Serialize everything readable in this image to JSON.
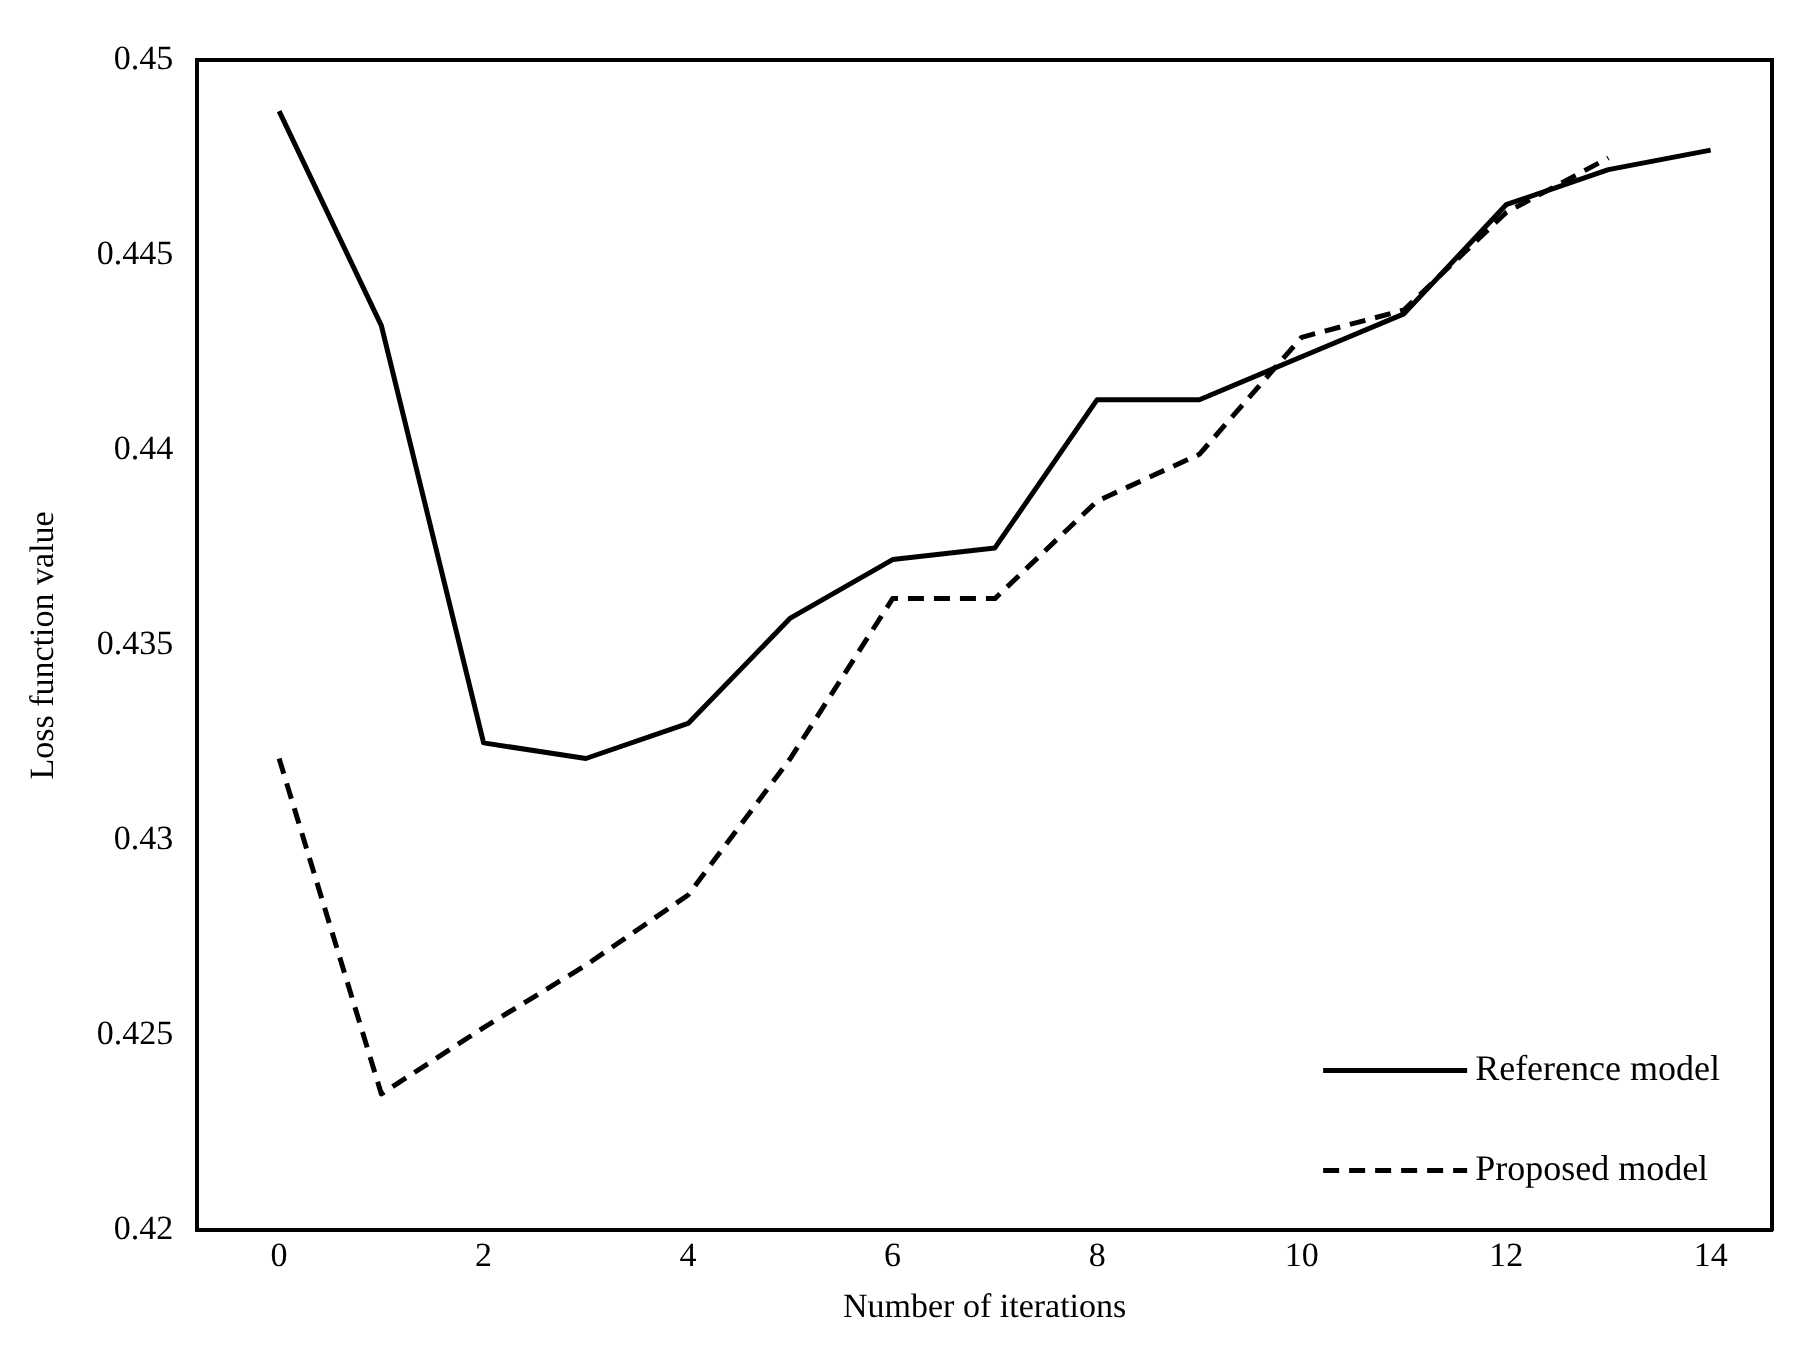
{
  "chart_data": {
    "type": "line",
    "xlabel": "Number of iterations",
    "ylabel": "Loss function value",
    "x": [
      0,
      1,
      2,
      3,
      4,
      5,
      6,
      7,
      8,
      9,
      10,
      11,
      12,
      13,
      14
    ],
    "series": [
      {
        "name": "Reference model",
        "color": "#000000",
        "line_style": "solid",
        "values": [
          0.4487,
          0.4432,
          0.4325,
          0.4321,
          0.433,
          0.4357,
          0.4372,
          0.4375,
          0.4413,
          0.4413,
          0.4424,
          0.4435,
          0.4463,
          0.4472,
          0.4477
        ]
      },
      {
        "name": "Proposed model",
        "color": "#000000",
        "line_style": "dashed",
        "values": [
          0.4321,
          0.4235,
          0.4252,
          0.4268,
          0.4286,
          0.4321,
          0.4362,
          0.4362,
          0.4387,
          0.4399,
          0.4429,
          0.4436,
          0.4461,
          0.4475,
          null
        ]
      }
    ],
    "xlim": [
      -0.8,
      14.6
    ],
    "xticks": [
      0,
      2,
      4,
      6,
      8,
      10,
      12,
      14
    ],
    "ylim": [
      0.42,
      0.45
    ],
    "yticks": [
      0.42,
      0.425,
      0.43,
      0.435,
      0.44,
      0.445,
      0.45
    ],
    "grid": false,
    "legend": "bottom right",
    "marker": "none"
  }
}
